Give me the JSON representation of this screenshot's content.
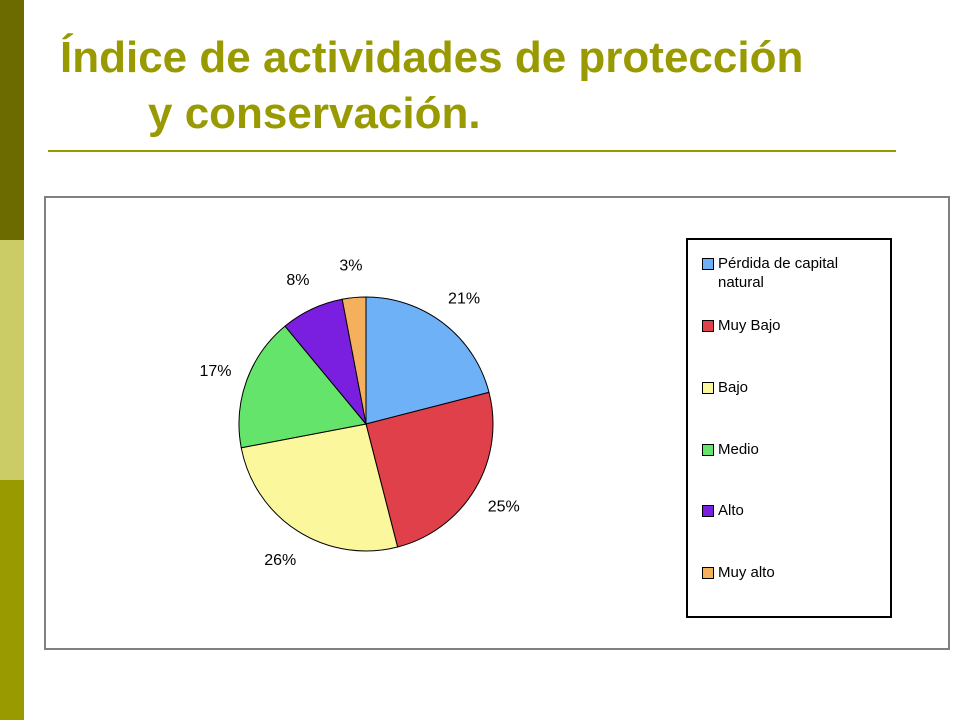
{
  "slide": {
    "title_line1": "Índice de actividades de protección",
    "title_line2": "y conservación.",
    "title_color": "#999900"
  },
  "chart_data": {
    "type": "pie",
    "title": "",
    "legend_position": "right",
    "categories": [
      "Pérdida de capital natural",
      "Muy  Bajo",
      "Bajo",
      "Medio",
      "Alto",
      "Muy  alto"
    ],
    "values": [
      21,
      25,
      26,
      17,
      8,
      3
    ],
    "labels": [
      "21%",
      "25%",
      "26%",
      "17%",
      "8%",
      "3%"
    ],
    "colors": [
      "#6fb1f7",
      "#e0404a",
      "#fbf79d",
      "#64e46a",
      "#7a1fe0",
      "#f5b05e"
    ]
  }
}
